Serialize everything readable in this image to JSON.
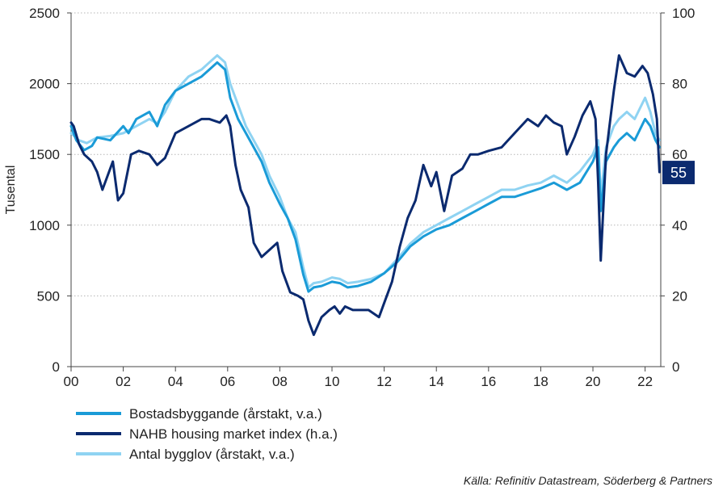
{
  "chart_data": {
    "type": "line",
    "ylabel_left": "Tusental",
    "ylim_left": [
      0,
      2500
    ],
    "yticks_left": [
      "0",
      "500",
      "1000",
      "1500",
      "2000",
      "2500"
    ],
    "ylim_right": [
      0,
      100
    ],
    "yticks_right": [
      "0",
      "20",
      "40",
      "60",
      "80",
      "100"
    ],
    "xlim": [
      2000,
      2022.6
    ],
    "xticks": [
      "00",
      "02",
      "04",
      "06",
      "08",
      "10",
      "12",
      "14",
      "16",
      "18",
      "20",
      "22"
    ],
    "grid": "horizontal dotted",
    "end_label": "55",
    "source": "Källa: Refinitiv Datastream, Söderberg & Partners",
    "legend": [
      "Bostadsbyggande (årstakt, v.a.)",
      "NAHB housing market index (h.a.)",
      "Antal bygglov (årstakt, v.a.)"
    ],
    "colors": {
      "starts": "#1a9bd7",
      "nahb": "#0b2a6f",
      "permits": "#8fd3f2",
      "end_label_bg": "#0b2a6f",
      "grid": "#b5b5b5"
    },
    "series": [
      {
        "name": "Bostadsbyggande (årstakt, v.a.)",
        "axis": "left",
        "x": [
          2000.0,
          2000.2,
          2000.5,
          2000.8,
          2001.0,
          2001.5,
          2002.0,
          2002.2,
          2002.5,
          2003.0,
          2003.3,
          2003.6,
          2004.0,
          2004.5,
          2005.0,
          2005.3,
          2005.6,
          2005.9,
          2006.1,
          2006.4,
          2006.7,
          2007.0,
          2007.3,
          2007.6,
          2008.0,
          2008.3,
          2008.6,
          2008.9,
          2009.1,
          2009.3,
          2009.6,
          2010.0,
          2010.3,
          2010.6,
          2011.0,
          2011.5,
          2012.0,
          2012.5,
          2013.0,
          2013.5,
          2014.0,
          2014.5,
          2015.0,
          2015.5,
          2016.0,
          2016.5,
          2017.0,
          2017.5,
          2018.0,
          2018.5,
          2019.0,
          2019.5,
          2020.0,
          2020.2,
          2020.3,
          2020.5,
          2020.8,
          2021.0,
          2021.3,
          2021.6,
          2022.0,
          2022.2,
          2022.4,
          2022.55
        ],
        "values": [
          1700,
          1600,
          1530,
          1560,
          1620,
          1600,
          1700,
          1650,
          1750,
          1800,
          1700,
          1850,
          1950,
          2000,
          2050,
          2100,
          2150,
          2100,
          1900,
          1750,
          1650,
          1550,
          1450,
          1300,
          1150,
          1050,
          900,
          650,
          530,
          560,
          570,
          600,
          590,
          560,
          570,
          600,
          660,
          740,
          850,
          920,
          970,
          1000,
          1050,
          1100,
          1150,
          1200,
          1200,
          1230,
          1260,
          1300,
          1250,
          1300,
          1450,
          1550,
          1100,
          1450,
          1550,
          1600,
          1650,
          1600,
          1750,
          1700,
          1600,
          1550
        ]
      },
      {
        "name": "NAHB housing market index (h.a.)",
        "axis": "right",
        "x": [
          2000.0,
          2000.1,
          2000.3,
          2000.5,
          2000.8,
          2001.0,
          2001.2,
          2001.6,
          2001.8,
          2002.0,
          2002.3,
          2002.6,
          2003.0,
          2003.3,
          2003.6,
          2004.0,
          2004.5,
          2005.0,
          2005.3,
          2005.7,
          2005.95,
          2006.1,
          2006.3,
          2006.5,
          2006.8,
          2007.0,
          2007.3,
          2007.6,
          2007.9,
          2008.1,
          2008.4,
          2008.7,
          2008.9,
          2009.1,
          2009.3,
          2009.6,
          2009.9,
          2010.1,
          2010.3,
          2010.5,
          2010.8,
          2011.0,
          2011.4,
          2011.8,
          2012.0,
          2012.3,
          2012.6,
          2012.9,
          2013.2,
          2013.5,
          2013.8,
          2014.0,
          2014.3,
          2014.6,
          2015.0,
          2015.3,
          2015.6,
          2016.0,
          2016.5,
          2017.0,
          2017.5,
          2017.9,
          2018.2,
          2018.5,
          2018.8,
          2019.0,
          2019.3,
          2019.6,
          2019.9,
          2020.1,
          2020.2,
          2020.3,
          2020.5,
          2020.8,
          2021.0,
          2021.3,
          2021.6,
          2021.9,
          2022.1,
          2022.3,
          2022.45,
          2022.55
        ],
        "values": [
          69,
          68,
          63,
          60,
          58,
          55,
          50,
          58,
          47,
          49,
          60,
          61,
          60,
          57,
          59,
          66,
          68,
          70,
          70,
          69,
          71,
          68,
          57,
          50,
          45,
          35,
          31,
          33,
          35,
          27,
          21,
          20,
          19,
          13,
          9,
          14,
          16,
          17,
          15,
          17,
          16,
          16,
          16,
          14,
          18,
          24,
          34,
          42,
          47,
          57,
          51,
          55,
          44,
          54,
          56,
          60,
          60,
          61,
          62,
          66,
          70,
          68,
          71,
          69,
          68,
          60,
          65,
          71,
          75,
          70,
          52,
          30,
          60,
          78,
          88,
          83,
          82,
          85,
          83,
          77,
          70,
          55
        ]
      },
      {
        "name": "Antal bygglov (årstakt, v.a.)",
        "axis": "left",
        "x": [
          2000.0,
          2000.3,
          2000.6,
          2001.0,
          2001.5,
          2002.0,
          2002.5,
          2003.0,
          2003.3,
          2003.6,
          2004.0,
          2004.5,
          2005.0,
          2005.3,
          2005.6,
          2005.9,
          2006.1,
          2006.4,
          2006.7,
          2007.0,
          2007.3,
          2007.6,
          2008.0,
          2008.3,
          2008.6,
          2008.9,
          2009.1,
          2009.3,
          2009.6,
          2010.0,
          2010.3,
          2010.6,
          2011.0,
          2011.5,
          2012.0,
          2012.5,
          2013.0,
          2013.5,
          2014.0,
          2014.5,
          2015.0,
          2015.5,
          2016.0,
          2016.5,
          2017.0,
          2017.5,
          2018.0,
          2018.5,
          2019.0,
          2019.5,
          2020.0,
          2020.2,
          2020.3,
          2020.5,
          2020.8,
          2021.0,
          2021.3,
          2021.6,
          2022.0,
          2022.2,
          2022.4,
          2022.55
        ],
        "values": [
          1650,
          1600,
          1580,
          1620,
          1630,
          1650,
          1700,
          1750,
          1720,
          1800,
          1950,
          2050,
          2100,
          2150,
          2200,
          2150,
          2000,
          1850,
          1700,
          1600,
          1500,
          1350,
          1200,
          1050,
          950,
          700,
          560,
          590,
          600,
          630,
          620,
          590,
          600,
          620,
          660,
          760,
          870,
          950,
          1000,
          1050,
          1100,
          1150,
          1200,
          1250,
          1250,
          1280,
          1300,
          1350,
          1300,
          1380,
          1500,
          1600,
          1200,
          1550,
          1700,
          1750,
          1800,
          1750,
          1900,
          1800,
          1650,
          1600
        ]
      }
    ]
  }
}
